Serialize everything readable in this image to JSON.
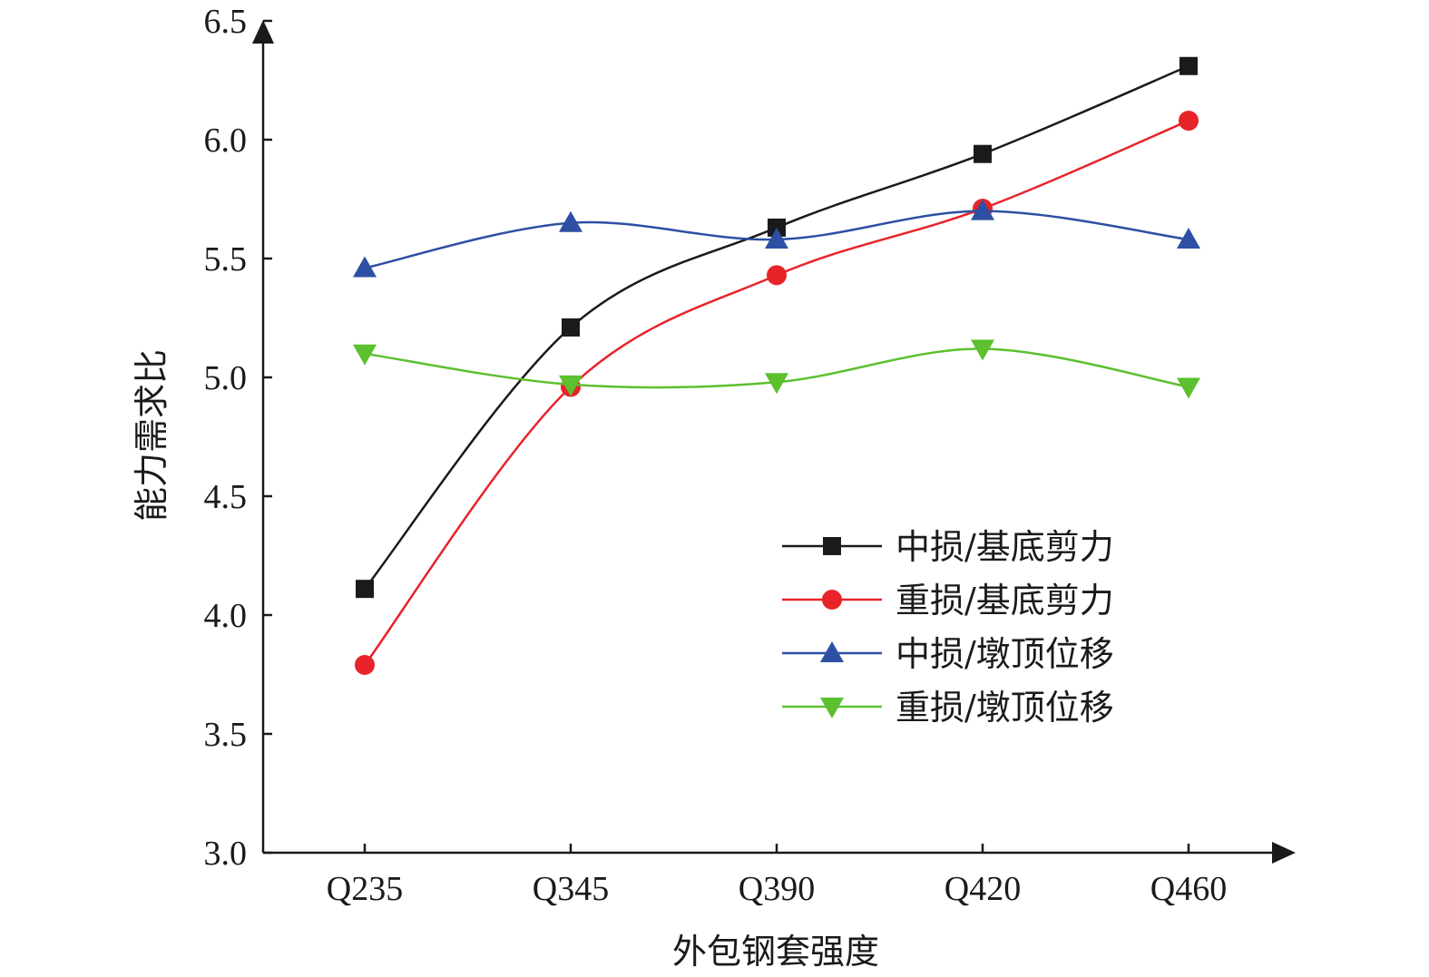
{
  "chart_data": {
    "type": "line",
    "title": "",
    "xlabel": "外包钢套强度",
    "ylabel": "能力需求比",
    "categories": [
      "Q235",
      "Q345",
      "Q390",
      "Q420",
      "Q460"
    ],
    "ylim": [
      3.0,
      6.5
    ],
    "yticks": [
      "3.0",
      "3.5",
      "4.0",
      "4.5",
      "5.0",
      "5.5",
      "6.0",
      "6.5"
    ],
    "grid": false,
    "legend_position": "lower-right",
    "series": [
      {
        "name": "中损/基底剪力",
        "color": "#1a1a1a",
        "marker": "square",
        "values": [
          4.11,
          5.21,
          5.63,
          5.94,
          6.31
        ]
      },
      {
        "name": "重损/基底剪力",
        "color": "#e8232a",
        "marker": "circle",
        "values": [
          3.79,
          4.96,
          5.43,
          5.71,
          6.08
        ]
      },
      {
        "name": "中损/墩顶位移",
        "color": "#2e4fa3",
        "marker": "triangle-up",
        "values": [
          5.46,
          5.65,
          5.58,
          5.7,
          5.58
        ]
      },
      {
        "name": "重损/墩顶位移",
        "color": "#5cc02f",
        "marker": "triangle-down",
        "values": [
          5.1,
          4.97,
          4.98,
          5.12,
          4.96
        ]
      }
    ]
  }
}
